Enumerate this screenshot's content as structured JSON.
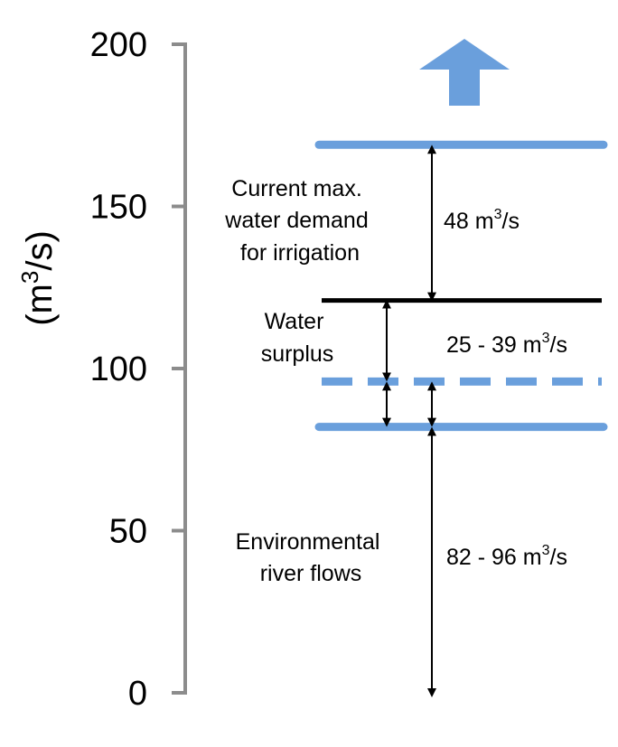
{
  "axis": {
    "title_base": "(m",
    "title_sup": "3",
    "title_rest": "/s)",
    "ticks": [
      "0",
      "50",
      "100",
      "150",
      "200"
    ],
    "tick_values": [
      0,
      50,
      100,
      150,
      200
    ],
    "range": [
      0,
      200
    ]
  },
  "levels": {
    "environmental_low": 82,
    "environmental_high": 96,
    "demand_base": 121,
    "demand_top": 169
  },
  "labels": {
    "current_demand_lines": [
      "Current max.",
      "water demand",
      "for irrigation"
    ],
    "surplus_lines": [
      "Water",
      "surplus"
    ],
    "environmental_lines": [
      "Environmental",
      "river flows"
    ],
    "demand_value": {
      "base": "48 m",
      "sup": "3",
      "rest": "/s"
    },
    "surplus_value": {
      "base": "25 - 39 m",
      "sup": "3",
      "rest": "/s"
    },
    "environmental_value": {
      "base": "82 - 96 m",
      "sup": "3",
      "rest": "/s"
    }
  },
  "colors": {
    "blue_line": "#6a9fdc",
    "black_line": "#000000",
    "axis": "#8c8c8c"
  }
}
